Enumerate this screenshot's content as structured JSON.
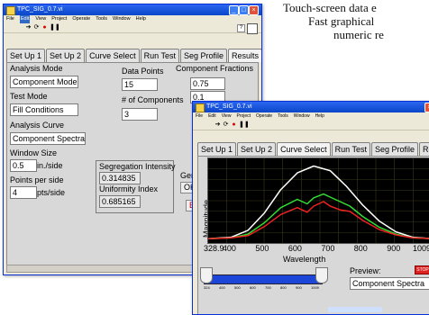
{
  "caption": {
    "line1": "Touch-screen data e",
    "line2": "Fast graphical",
    "line3": "numeric re"
  },
  "window1": {
    "title": "TPC_SIG_0.7.vi",
    "menu": [
      "File",
      "Edit",
      "View",
      "Project",
      "Operate",
      "Tools",
      "Window",
      "Help"
    ],
    "tabs": [
      "Set Up 1",
      "Set Up 2",
      "Curve Select",
      "Run Test",
      "Seg Profile",
      "Results"
    ],
    "active_tab": "Set Up 2",
    "analysis_mode_label": "Analysis Mode",
    "analysis_mode_value": "Component Mode",
    "test_mode_label": "Test Mode",
    "test_mode_value": "Fill Conditions",
    "analysis_curve_label": "Analysis Curve",
    "analysis_curve_value": "Component Spectra",
    "window_size_label": "Window Size",
    "window_size_value": "0.5",
    "window_size_unit": "in./side",
    "points_per_side_label": "Points per side",
    "points_per_side_value": "4",
    "points_per_side_unit": "pts/side",
    "data_points_label": "Data Points",
    "data_points_value": "15",
    "num_components_label": "# of Components",
    "num_components_value": "3",
    "component_fractions_label": "Component Fractions",
    "fractions": [
      "0.75",
      "0.1"
    ],
    "segregation_label": "Segregation Intensity",
    "segregation_value": "0.314835",
    "uniformity_label": "Uniformity Index",
    "uniformity_value": "0.685165",
    "gen_label": "Gen",
    "ok_label": "OK",
    "ex_label": "Ex"
  },
  "window2": {
    "title": "TPC_SIG_0.7.vi",
    "menu": [
      "File",
      "Edit",
      "View",
      "Project",
      "Operate",
      "Tools",
      "Window",
      "Help"
    ],
    "tabs": [
      "Set Up 1",
      "Set Up 2",
      "Curve Select",
      "Run Test",
      "Seg Profile",
      "Results"
    ],
    "active_tab": "Curve Select",
    "y_axis_label": "Magnitude",
    "x_axis_label": "Wavelength",
    "x_ticks": [
      "328.9",
      "400",
      "500",
      "600",
      "700",
      "800",
      "900",
      "1009"
    ],
    "slider_ticks": [
      "324",
      "400",
      "500",
      "600",
      "700",
      "800",
      "900",
      "1009"
    ],
    "preview_label": "Preview:",
    "preview_value": "Component Spectra",
    "stop_label": "STOP"
  },
  "chart_data": {
    "type": "line",
    "xlabel": "Wavelength",
    "ylabel": "Magnitude",
    "xlim": [
      328.9,
      1009
    ],
    "ylim": [
      0,
      1
    ],
    "series": [
      {
        "color": "#ffffff",
        "x": [
          328.9,
          400,
          450,
          500,
          550,
          600,
          650,
          700,
          750,
          800,
          850,
          900,
          950,
          1009
        ],
        "y": [
          0.01,
          0.03,
          0.12,
          0.35,
          0.66,
          0.88,
          0.97,
          0.91,
          0.7,
          0.45,
          0.24,
          0.1,
          0.03,
          0.01
        ]
      },
      {
        "color": "#33dd33",
        "x": [
          328.9,
          400,
          450,
          500,
          550,
          600,
          630,
          650,
          680,
          700,
          730,
          760,
          800,
          850,
          900,
          950,
          1009
        ],
        "y": [
          0.01,
          0.02,
          0.07,
          0.22,
          0.42,
          0.53,
          0.47,
          0.55,
          0.6,
          0.56,
          0.5,
          0.44,
          0.3,
          0.16,
          0.07,
          0.02,
          0.01
        ]
      },
      {
        "color": "#ee2222",
        "x": [
          328.9,
          400,
          450,
          500,
          550,
          600,
          630,
          650,
          680,
          700,
          730,
          760,
          800,
          850,
          900,
          950,
          1009
        ],
        "y": [
          0.01,
          0.02,
          0.05,
          0.17,
          0.33,
          0.42,
          0.36,
          0.44,
          0.5,
          0.44,
          0.39,
          0.37,
          0.25,
          0.13,
          0.06,
          0.02,
          0.01
        ]
      }
    ]
  }
}
